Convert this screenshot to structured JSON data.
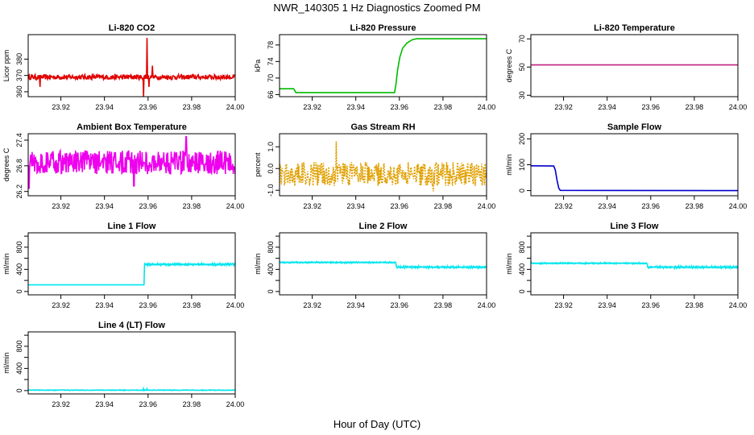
{
  "figure": {
    "title": "NWR_140305  1 Hz Diagnostics Zoomed PM",
    "xlabel": "Hour of Day (UTC)"
  },
  "chart_data": [
    {
      "type": "line",
      "title": "Li-820 CO2",
      "ylabel": "Licor ppm",
      "color": "#e00000",
      "xlim": [
        23.905,
        24.0
      ],
      "ylim": [
        357,
        395
      ],
      "yticks": [
        360,
        370,
        380
      ],
      "xticks": [
        23.92,
        23.94,
        23.96,
        23.98,
        24.0
      ],
      "xtick_labels": [
        "23.92",
        "23.94",
        "23.96",
        "23.98",
        "24.00"
      ],
      "series": {
        "kind": "noise",
        "base": 369,
        "amp": 1.5,
        "events": [
          {
            "x": 23.9105,
            "dy": -6
          },
          {
            "x": 23.958,
            "dy": -12
          },
          {
            "x": 23.9595,
            "dy": 24
          },
          {
            "x": 23.9605,
            "dy": -6
          },
          {
            "x": 23.962,
            "dy": 7
          }
        ]
      }
    },
    {
      "type": "line",
      "title": "Li-820 Pressure",
      "ylabel": "kPa",
      "color": "#00bb00",
      "xlim": [
        23.905,
        24.0
      ],
      "ylim": [
        65.5,
        80.5
      ],
      "yticks": [
        66,
        70,
        74,
        78
      ],
      "xticks": [
        23.92,
        23.94,
        23.96,
        23.98,
        24.0
      ],
      "xtick_labels": [
        "23.92",
        "23.94",
        "23.96",
        "23.98",
        "24.00"
      ],
      "series": {
        "kind": "points",
        "x": [
          23.905,
          23.9115,
          23.9125,
          23.9578,
          23.9584,
          23.9592,
          23.9602,
          23.9615,
          23.9635,
          23.966,
          23.968,
          24.0
        ],
        "y": [
          67.4,
          67.4,
          66.5,
          66.5,
          68.5,
          72.0,
          75.0,
          77.2,
          78.5,
          79.3,
          79.5,
          79.5
        ]
      }
    },
    {
      "type": "line",
      "title": "Li-820 Temperature",
      "ylabel": "degrees C",
      "color": "#c0207f",
      "xlim": [
        23.905,
        24.0
      ],
      "ylim": [
        29,
        73
      ],
      "yticks": [
        30,
        50,
        70
      ],
      "xticks": [
        23.92,
        23.94,
        23.96,
        23.98,
        24.0
      ],
      "xtick_labels": [
        "23.92",
        "23.94",
        "23.96",
        "23.98",
        "24.00"
      ],
      "series": {
        "kind": "points",
        "x": [
          23.905,
          24.0
        ],
        "y": [
          51.5,
          51.5
        ]
      }
    },
    {
      "type": "line",
      "title": "Ambient Box Temperature",
      "ylabel": "degrees C",
      "color": "#ee00ee",
      "xlim": [
        23.905,
        24.0
      ],
      "ylim": [
        26.1,
        27.55
      ],
      "yticks": [
        26.2,
        26.8,
        27.4
      ],
      "ytick_labels": [
        "26.2",
        "26.8",
        "27.4"
      ],
      "xticks": [
        23.92,
        23.94,
        23.96,
        23.98,
        24.0
      ],
      "xtick_labels": [
        "23.92",
        "23.94",
        "23.96",
        "23.98",
        "24.00"
      ],
      "series": {
        "kind": "noise",
        "base": 26.88,
        "amp": 0.28,
        "events": [
          {
            "x": 23.9055,
            "dy": -0.62
          },
          {
            "x": 23.9775,
            "dy": 0.6
          },
          {
            "x": 23.9535,
            "dy": -0.55
          }
        ]
      }
    },
    {
      "type": "line",
      "title": "Gas Stream RH",
      "ylabel": "percent",
      "color": "#e0a000",
      "xlim": [
        23.905,
        24.0
      ],
      "ylim": [
        -1.25,
        1.6
      ],
      "yticks": [
        -1.0,
        0.0,
        1.0
      ],
      "ytick_labels": [
        "-1.0",
        "0.0",
        "1.0"
      ],
      "xticks": [
        23.92,
        23.94,
        23.96,
        23.98,
        24.0
      ],
      "xtick_labels": [
        "23.92",
        "23.94",
        "23.96",
        "23.98",
        "24.00"
      ],
      "series": {
        "kind": "noise",
        "base": -0.25,
        "amp": 0.55,
        "dashed": true,
        "events": [
          {
            "x": 23.931,
            "dy": 1.5
          },
          {
            "x": 23.9755,
            "dy": -0.8
          }
        ]
      }
    },
    {
      "type": "line",
      "title": "Sample Flow",
      "ylabel": "ml/min",
      "color": "#0000cc",
      "xlim": [
        23.905,
        24.0
      ],
      "ylim": [
        -20,
        220
      ],
      "yticks": [
        0,
        100,
        200
      ],
      "xticks": [
        23.92,
        23.94,
        23.96,
        23.98,
        24.0
      ],
      "xtick_labels": [
        "23.92",
        "23.94",
        "23.96",
        "23.98",
        "24.00"
      ],
      "series": {
        "kind": "points",
        "x": [
          23.905,
          23.9155,
          23.9162,
          23.917,
          23.9178,
          23.9185,
          24.0
        ],
        "y": [
          96,
          95,
          80,
          40,
          10,
          1,
          0
        ]
      }
    },
    {
      "type": "line",
      "title": "Line 1 Flow",
      "ylabel": "ml/min",
      "color": "#00e5ee",
      "xlim": [
        23.905,
        24.0
      ],
      "ylim": [
        -60,
        1060
      ],
      "yticks": [
        0,
        400,
        800
      ],
      "minor_yticks": [
        200,
        600,
        1000
      ],
      "xticks": [
        23.92,
        23.94,
        23.96,
        23.98,
        24.0
      ],
      "xtick_labels": [
        "23.92",
        "23.94",
        "23.96",
        "23.98",
        "24.00"
      ],
      "series": {
        "kind": "step",
        "x_step": 23.9583,
        "before": 120,
        "after": 490,
        "amp_before": 0,
        "amp_after": 22
      }
    },
    {
      "type": "line",
      "title": "Line 2 Flow",
      "ylabel": "ml/min",
      "color": "#00e5ee",
      "xlim": [
        23.905,
        24.0
      ],
      "ylim": [
        -60,
        1060
      ],
      "yticks": [
        0,
        400,
        800
      ],
      "minor_yticks": [
        200,
        600,
        1000
      ],
      "xticks": [
        23.92,
        23.94,
        23.96,
        23.98,
        24.0
      ],
      "xtick_labels": [
        "23.92",
        "23.94",
        "23.96",
        "23.98",
        "24.00"
      ],
      "series": {
        "kind": "step",
        "x_step": 23.9585,
        "before": 525,
        "after": 440,
        "amp_before": 15,
        "amp_after": 22
      }
    },
    {
      "type": "line",
      "title": "Line 3 Flow",
      "ylabel": "ml/min",
      "color": "#00e5ee",
      "xlim": [
        23.905,
        24.0
      ],
      "ylim": [
        -60,
        1060
      ],
      "yticks": [
        0,
        400,
        800
      ],
      "minor_yticks": [
        200,
        600,
        1000
      ],
      "xticks": [
        23.92,
        23.94,
        23.96,
        23.98,
        24.0
      ],
      "xtick_labels": [
        "23.92",
        "23.94",
        "23.96",
        "23.98",
        "24.00"
      ],
      "series": {
        "kind": "step",
        "x_step": 23.9585,
        "before": 510,
        "after": 440,
        "amp_before": 15,
        "amp_after": 22
      }
    },
    {
      "type": "line",
      "title": "Line 4 (LT) Flow",
      "ylabel": "ml/min",
      "color": "#00e5ee",
      "xlim": [
        23.905,
        24.0
      ],
      "ylim": [
        -60,
        1060
      ],
      "yticks": [
        0,
        400,
        800
      ],
      "minor_yticks": [
        200,
        600,
        1000
      ],
      "xticks": [
        23.92,
        23.94,
        23.96,
        23.98,
        24.0
      ],
      "xtick_labels": [
        "23.92",
        "23.94",
        "23.96",
        "23.98",
        "24.00"
      ],
      "series": {
        "kind": "noise",
        "base": 8,
        "amp": 5,
        "events": [
          {
            "x": 23.958,
            "dy": 28
          },
          {
            "x": 23.9595,
            "dy": 25
          }
        ]
      }
    }
  ]
}
